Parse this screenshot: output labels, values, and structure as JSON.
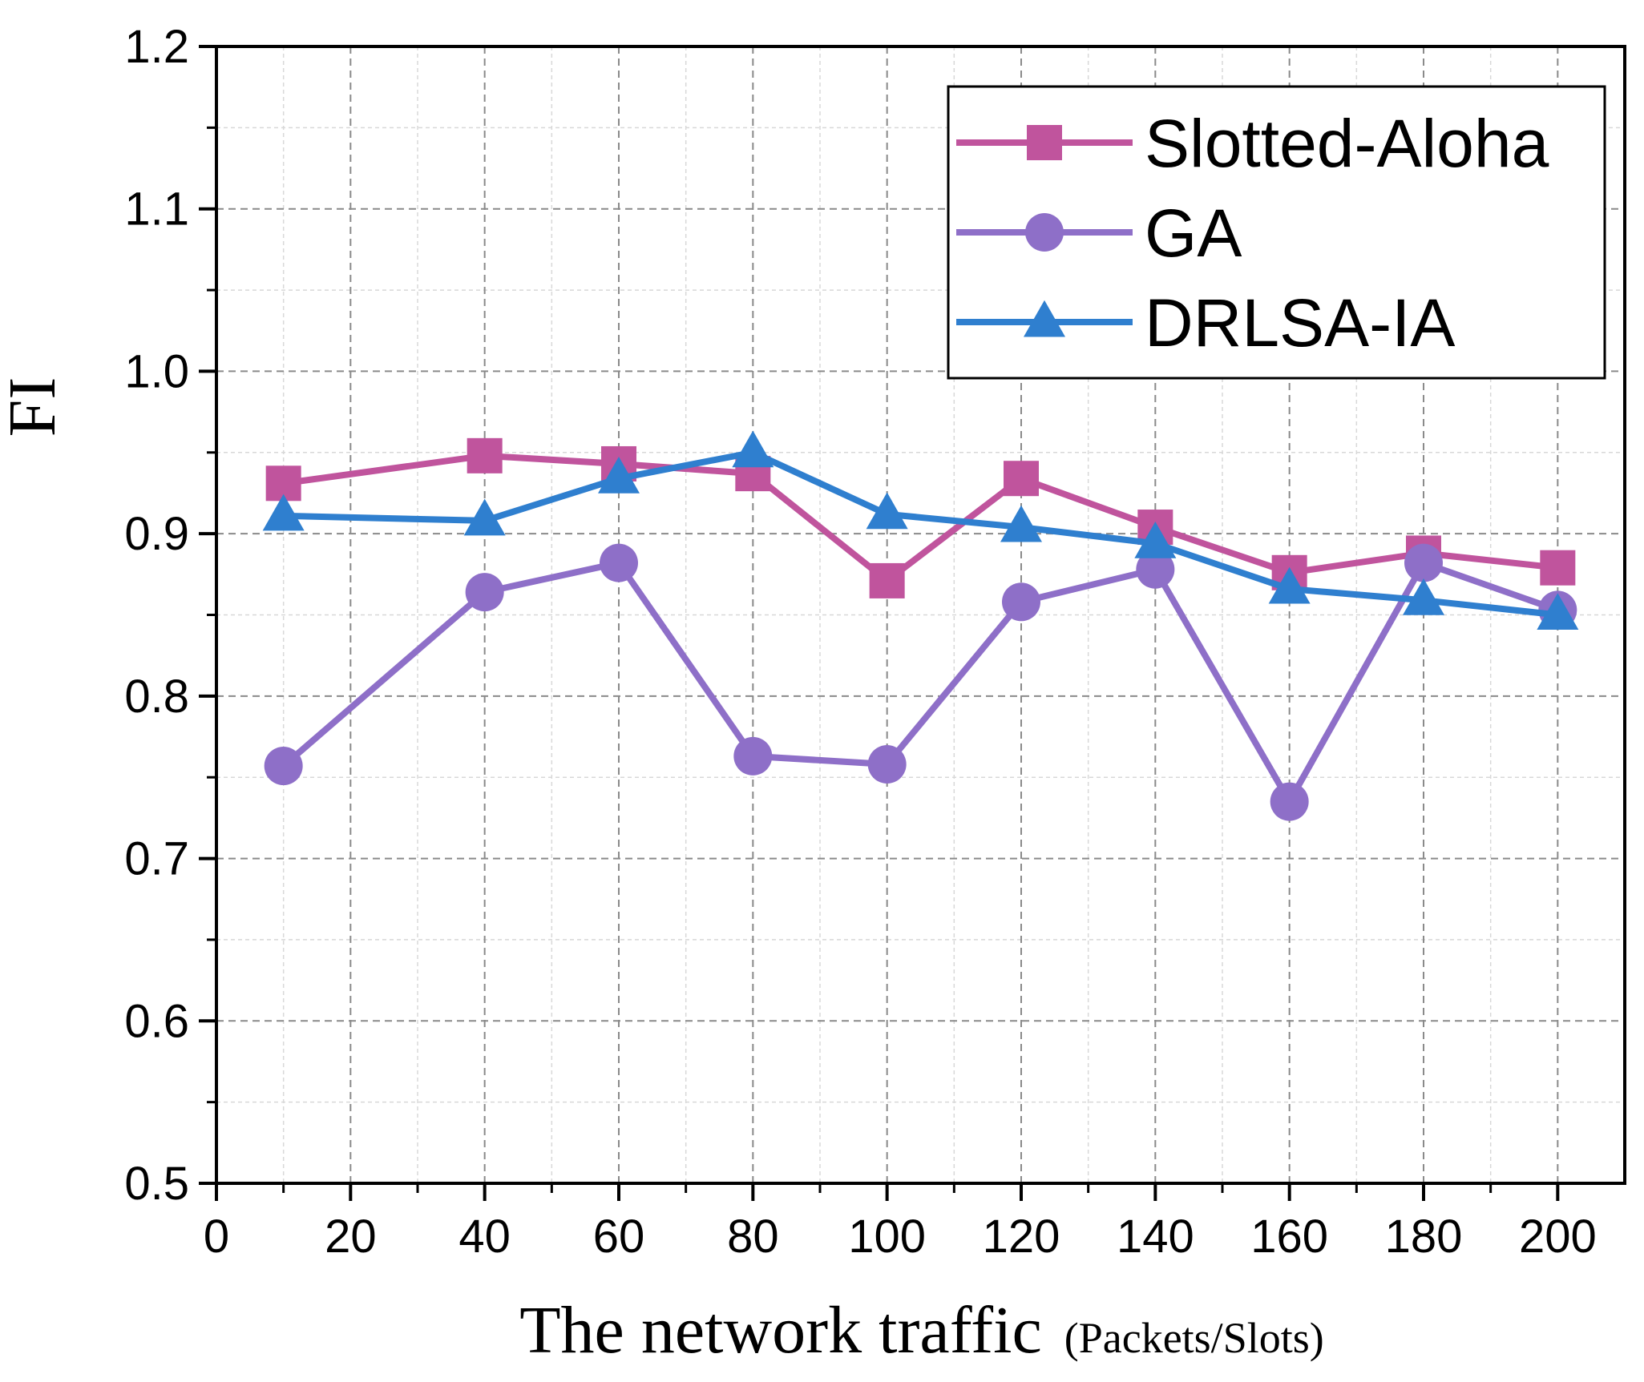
{
  "chart_data": {
    "type": "line",
    "title": "",
    "xlabel": "The network traffic",
    "xlabel_unit": "(Packets/Slots)",
    "ylabel": "FI",
    "xlim": [
      0,
      210
    ],
    "ylim": [
      0.5,
      1.2
    ],
    "xticks": [
      0,
      20,
      40,
      60,
      80,
      100,
      120,
      140,
      160,
      180,
      200
    ],
    "xtick_labels": [
      "0",
      "20",
      "40",
      "60",
      "80",
      "100",
      "120",
      "140",
      "160",
      "180",
      "200"
    ],
    "yticks": [
      0.5,
      0.6,
      0.7,
      0.8,
      0.9,
      1.0,
      1.1,
      1.2
    ],
    "ytick_labels": [
      "0.5",
      "0.6",
      "0.7",
      "0.8",
      "0.9",
      "1.0",
      "1.1",
      "1.2"
    ],
    "grid": true,
    "legend_position": "top-right",
    "x": [
      10,
      40,
      60,
      80,
      100,
      120,
      140,
      160,
      180,
      200
    ],
    "series": [
      {
        "name": "Slotted-Aloha",
        "marker": "square",
        "color": "#c0549d",
        "values": [
          0.931,
          0.948,
          0.943,
          0.937,
          0.871,
          0.934,
          0.904,
          0.876,
          0.888,
          0.879
        ]
      },
      {
        "name": "GA",
        "marker": "circle",
        "color": "#8e6fc8",
        "values": [
          0.757,
          0.864,
          0.882,
          0.763,
          0.758,
          0.858,
          0.878,
          0.735,
          0.882,
          0.853
        ]
      },
      {
        "name": "DRLSA-IA",
        "marker": "triangle",
        "color": "#2f7fcf",
        "values": [
          0.911,
          0.908,
          0.934,
          0.95,
          0.912,
          0.904,
          0.894,
          0.866,
          0.859,
          0.85
        ]
      }
    ]
  }
}
